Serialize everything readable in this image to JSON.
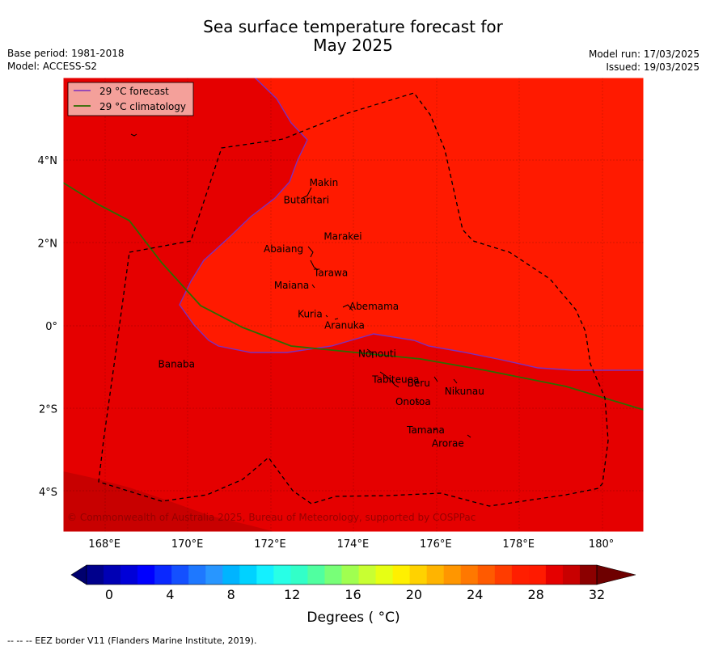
{
  "title_line1": "Sea surface temperature forecast for",
  "title_line2": "May 2025",
  "base_period": "Base period: 1981-2018",
  "model": "Model: ACCESS-S2",
  "model_run": "Model run: 17/03/2025",
  "issued": "Issued: 19/03/2025",
  "legend": {
    "forecast": "29 °C  forecast",
    "climatology": "29 °C  climatology",
    "forecast_color": "#7b2fbf",
    "climatology_color": "#2e6b00"
  },
  "axes": {
    "x_ticks": [
      "168°E",
      "170°E",
      "172°E",
      "174°E",
      "176°E",
      "178°E",
      "180°"
    ],
    "y_ticks": [
      "4°N",
      "2°N",
      "0°",
      "2°S",
      "4°S"
    ]
  },
  "islands": [
    {
      "name": "Makin",
      "lon": 173.0,
      "lat": 3.3
    },
    {
      "name": "Butaritari",
      "lon": 172.9,
      "lat": 3.1
    },
    {
      "name": "Marakei",
      "lon": 173.3,
      "lat": 2.0
    },
    {
      "name": "Abaiang",
      "lon": 172.9,
      "lat": 1.8
    },
    {
      "name": "Tarawa",
      "lon": 173.0,
      "lat": 1.4
    },
    {
      "name": "Maiana",
      "lon": 173.0,
      "lat": 1.0
    },
    {
      "name": "Abemama",
      "lon": 173.8,
      "lat": 0.45
    },
    {
      "name": "Kuria",
      "lon": 173.4,
      "lat": 0.22
    },
    {
      "name": "Aranuka",
      "lon": 173.6,
      "lat": 0.17
    },
    {
      "name": "Nonouti",
      "lon": 174.4,
      "lat": -0.65
    },
    {
      "name": "Banaba",
      "lon": 169.5,
      "lat": -0.85
    },
    {
      "name": "Tabiteuea",
      "lon": 174.8,
      "lat": -1.3
    },
    {
      "name": "Beru",
      "lon": 176.0,
      "lat": -1.35
    },
    {
      "name": "Nikunau",
      "lon": 176.45,
      "lat": -1.35
    },
    {
      "name": "Onotoa",
      "lon": 175.55,
      "lat": -1.8
    },
    {
      "name": "Tamana",
      "lon": 176.0,
      "lat": -2.5
    },
    {
      "name": "Arorae",
      "lon": 176.8,
      "lat": -2.65
    }
  ],
  "copyright": "© Commonwealth of Australia 2025, Bureau of Meteorology, supported by COSPPac",
  "colorbar": {
    "min": 0,
    "max": 32,
    "step": 1,
    "ticks": [
      "0",
      "4",
      "8",
      "12",
      "16",
      "20",
      "24",
      "28",
      "32"
    ],
    "label": "Degrees ( °C)"
  },
  "footer": "--  --  -- EEZ border V11 (Flanders Marine Institute, 2019)."
}
